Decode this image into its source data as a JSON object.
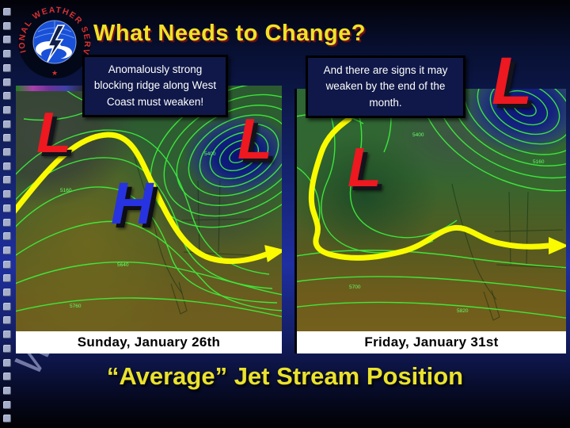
{
  "slide": {
    "title": "What Needs to Change?",
    "footer_title": "“Average” Jet Stream Position",
    "watermark": "Wee"
  },
  "logo": {
    "ring_text": "NATIONAL WEATHER SERVICE",
    "star": "★"
  },
  "callouts": {
    "left": "Anomalously strong blocking ridge along West Coast must weaken!",
    "right": "And there are signs it may weaken by the end of the month."
  },
  "maps": {
    "left": {
      "caption": "Sunday, January 26th",
      "markers": [
        {
          "label": "L",
          "type": "low"
        },
        {
          "label": "L",
          "type": "low"
        },
        {
          "label": "H",
          "type": "high"
        }
      ],
      "contour_labels": [
        "5160",
        "5400",
        "5640",
        "5760"
      ]
    },
    "right": {
      "caption": "Friday, January 31st",
      "markers": [
        {
          "label": "L",
          "type": "low"
        },
        {
          "label": "L",
          "type": "low"
        }
      ],
      "contour_labels": [
        "5160",
        "5400",
        "5700",
        "5820"
      ]
    }
  },
  "colors": {
    "title_yellow": "#f0e228",
    "jet_stream_yellow": "#fafa00",
    "low_marker_red": "#ed1820",
    "high_marker_blue": "#2733e0",
    "contour_green": "#3df53d",
    "background_navy": "#1e2fa0"
  },
  "decoration": {
    "film_square_count": 30
  }
}
